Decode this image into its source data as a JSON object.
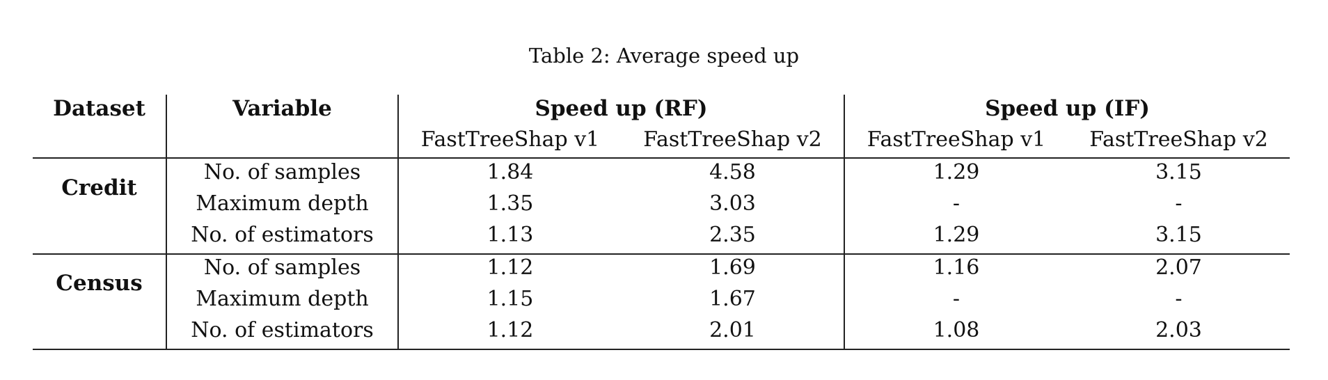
{
  "caption": "Table 2: Average speed up",
  "table": {
    "headers": {
      "dataset": "Dataset",
      "variable": "Variable",
      "group_rf": "Speed up (RF)",
      "group_if": "Speed up (IF)",
      "sub": [
        "FastTreeShap v1",
        "FastTreeShap v2",
        "FastTreeShap v1",
        "FastTreeShap v2"
      ]
    },
    "groups": [
      {
        "dataset": "Credit",
        "rows": [
          {
            "variable": "No. of samples",
            "values": [
              "1.84",
              "4.58",
              "1.29",
              "3.15"
            ]
          },
          {
            "variable": "Maximum depth",
            "values": [
              "1.35",
              "3.03",
              "-",
              "-"
            ]
          },
          {
            "variable": "No. of estimators",
            "values": [
              "1.13",
              "2.35",
              "1.29",
              "3.15"
            ]
          }
        ]
      },
      {
        "dataset": "Census",
        "rows": [
          {
            "variable": "No. of samples",
            "values": [
              "1.12",
              "1.69",
              "1.16",
              "2.07"
            ]
          },
          {
            "variable": "Maximum depth",
            "values": [
              "1.15",
              "1.67",
              "-",
              "-"
            ]
          },
          {
            "variable": "No. of estimators",
            "values": [
              "1.12",
              "2.01",
              "1.08",
              "2.03"
            ]
          }
        ]
      }
    ]
  }
}
